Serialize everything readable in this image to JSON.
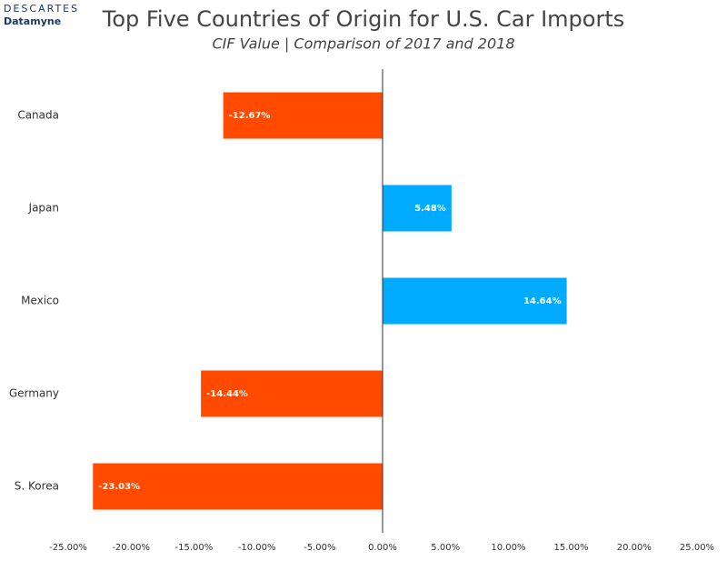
{
  "logo": {
    "brand": "DESCARTES",
    "sub": "Datamyne"
  },
  "chart_data": {
    "type": "hbar",
    "title": "Top Five Countries of Origin for U.S. Car Imports",
    "subtitle": "CIF Value | Comparison of 2017 and 2018",
    "categories": [
      "Canada",
      "Japan",
      "Mexico",
      "Germany",
      "S. Korea"
    ],
    "values": [
      -12.67,
      5.48,
      14.64,
      -14.44,
      -23.03
    ],
    "value_labels": [
      "-12.67%",
      "5.48%",
      "14.64%",
      "-14.44%",
      "-23.03%"
    ],
    "colors": [
      "#ff4a00",
      "#00aaff",
      "#00aaff",
      "#ff4a00",
      "#ff4a00"
    ],
    "xlim": [
      -25,
      25
    ],
    "xticks": [
      {
        "value": -25,
        "label": "-25.00%"
      },
      {
        "value": -20,
        "label": "-20.00%"
      },
      {
        "value": -15,
        "label": "-15.00%"
      },
      {
        "value": -10,
        "label": "-10.00%"
      },
      {
        "value": -5,
        "label": "-5.00%"
      },
      {
        "value": 0,
        "label": "0.00%"
      },
      {
        "value": 5,
        "label": "5.00%"
      },
      {
        "value": 10,
        "label": "10.00%"
      },
      {
        "value": 15,
        "label": "15.00%"
      },
      {
        "value": 20,
        "label": "20.00%"
      },
      {
        "value": 25,
        "label": "25.00%"
      }
    ],
    "grid": false
  }
}
